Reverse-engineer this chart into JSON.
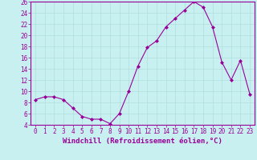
{
  "x": [
    0,
    1,
    2,
    3,
    4,
    5,
    6,
    7,
    8,
    9,
    10,
    11,
    12,
    13,
    14,
    15,
    16,
    17,
    18,
    19,
    20,
    21,
    22,
    23
  ],
  "y": [
    8.5,
    9.0,
    9.0,
    8.5,
    7.0,
    5.5,
    5.0,
    5.0,
    4.2,
    6.0,
    10.0,
    14.5,
    17.8,
    19.0,
    21.5,
    23.0,
    24.5,
    26.0,
    25.0,
    21.5,
    15.2,
    12.0,
    15.5,
    9.5
  ],
  "xlabel": "Windchill (Refroidissement éolien,°C)",
  "ylim": [
    4,
    26
  ],
  "xlim": [
    -0.5,
    23.5
  ],
  "line_color": "#990099",
  "marker": "D",
  "marker_size": 2,
  "bg_color": "#c8f0f0",
  "grid_color": "#b0dede",
  "yticks": [
    4,
    6,
    8,
    10,
    12,
    14,
    16,
    18,
    20,
    22,
    24,
    26
  ],
  "xticks": [
    0,
    1,
    2,
    3,
    4,
    5,
    6,
    7,
    8,
    9,
    10,
    11,
    12,
    13,
    14,
    15,
    16,
    17,
    18,
    19,
    20,
    21,
    22,
    23
  ],
  "tick_color": "#990099",
  "label_color": "#990099",
  "tick_fontsize": 5.5,
  "xlabel_fontsize": 6.5
}
